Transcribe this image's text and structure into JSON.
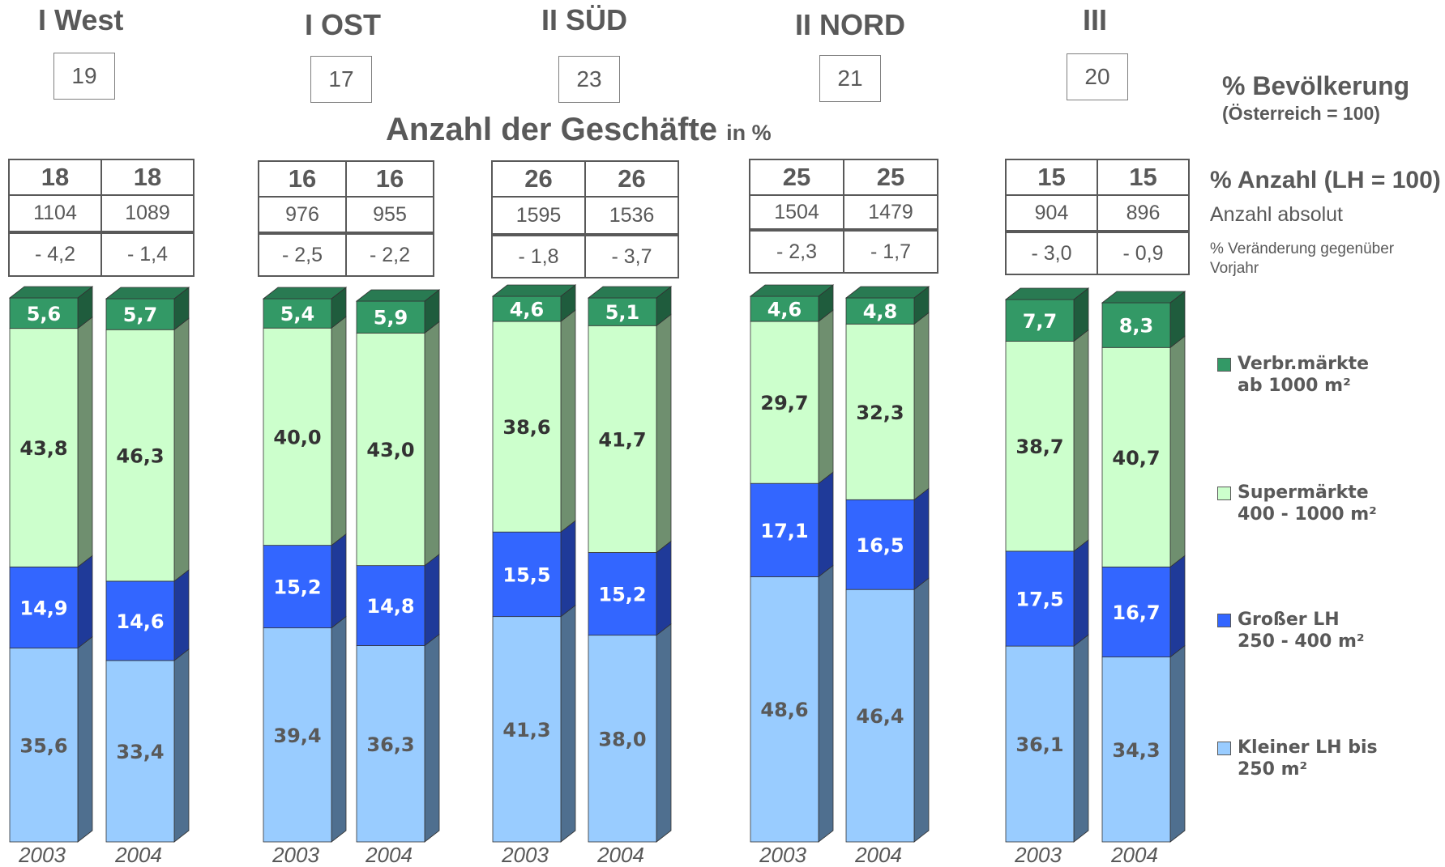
{
  "chart_data": {
    "type": "bar",
    "stacked": true,
    "title": "Anzahl der Geschäfte",
    "title_suffix": "in %",
    "population_label": "% Bevölkerung",
    "population_sublabel": "(Österreich = 100)",
    "row_labels": {
      "count_pct": "% Anzahl (LH = 100)",
      "count_abs": "Anzahl absolut",
      "change": "% Veränderung gegenüber Vorjahr"
    },
    "regions": [
      {
        "name": "I West",
        "population": "19",
        "years": [
          {
            "year": "2003",
            "count_pct": "18",
            "count_abs": "1104",
            "change": "- 4,2",
            "values": [
              35.6,
              14.9,
              43.8,
              5.6
            ],
            "labels": [
              "35,6",
              "14,9",
              "43,8",
              "5,6"
            ]
          },
          {
            "year": "2004",
            "count_pct": "18",
            "count_abs": "1089",
            "change": "- 1,4",
            "values": [
              33.4,
              14.6,
              46.3,
              5.7
            ],
            "labels": [
              "33,4",
              "14,6",
              "46,3",
              "5,7"
            ]
          }
        ]
      },
      {
        "name": "I OST",
        "population": "17",
        "years": [
          {
            "year": "2003",
            "count_pct": "16",
            "count_abs": "976",
            "change": "- 2,5",
            "values": [
              39.4,
              15.2,
              40.0,
              5.4
            ],
            "labels": [
              "39,4",
              "15,2",
              "40,0",
              "5,4"
            ]
          },
          {
            "year": "2004",
            "count_pct": "16",
            "count_abs": "955",
            "change": "- 2,2",
            "values": [
              36.3,
              14.8,
              43.0,
              5.9
            ],
            "labels": [
              "36,3",
              "14,8",
              "43,0",
              "5,9"
            ]
          }
        ]
      },
      {
        "name": "II SÜD",
        "population": "23",
        "years": [
          {
            "year": "2003",
            "count_pct": "26",
            "count_abs": "1595",
            "change": "- 1,8",
            "values": [
              41.3,
              15.5,
              38.6,
              4.6
            ],
            "labels": [
              "41,3",
              "15,5",
              "38,6",
              "4,6"
            ]
          },
          {
            "year": "2004",
            "count_pct": "26",
            "count_abs": "1536",
            "change": "- 3,7",
            "values": [
              38.0,
              15.2,
              41.7,
              5.1
            ],
            "labels": [
              "38,0",
              "15,2",
              "41,7",
              "5,1"
            ]
          }
        ]
      },
      {
        "name": "II NORD",
        "population": "21",
        "years": [
          {
            "year": "2003",
            "count_pct": "25",
            "count_abs": "1504",
            "change": "- 2,3",
            "values": [
              48.6,
              17.1,
              29.7,
              4.6
            ],
            "labels": [
              "48,6",
              "17,1",
              "29,7",
              "4,6"
            ]
          },
          {
            "year": "2004",
            "count_pct": "25",
            "count_abs": "1479",
            "change": "- 1,7",
            "values": [
              46.4,
              16.5,
              32.3,
              4.8
            ],
            "labels": [
              "46,4",
              "16,5",
              "32,3",
              "4,8"
            ]
          }
        ]
      },
      {
        "name": "III",
        "population": "20",
        "years": [
          {
            "year": "2003",
            "count_pct": "15",
            "count_abs": "904",
            "change": "- 3,0",
            "values": [
              36.1,
              17.5,
              38.7,
              7.7
            ],
            "labels": [
              "36,1",
              "17,5",
              "38,7",
              "7,7"
            ]
          },
          {
            "year": "2004",
            "count_pct": "15",
            "count_abs": "896",
            "change": "- 0,9",
            "values": [
              34.3,
              16.7,
              40.7,
              8.3
            ],
            "labels": [
              "34,3",
              "16,7",
              "40,7",
              "8,3"
            ]
          }
        ]
      }
    ],
    "series": [
      {
        "name": "Kleiner LH bis 250 m²",
        "line1": "Kleiner LH bis",
        "line2": "250 m²",
        "color": "#99ccff",
        "side": "#4f6f8f",
        "label_color": "#595959"
      },
      {
        "name": "Großer LH 250 - 400 m²",
        "line1": "Großer LH",
        "line2": "250 - 400 m²",
        "color": "#3366ff",
        "side": "#1f3a99",
        "label_color": "#ffffff"
      },
      {
        "name": "Supermärkte 400 - 1000 m²",
        "line1": "Supermärkte",
        "line2": "400 - 1000 m²",
        "color": "#ccffcc",
        "side": "#6f8f6f",
        "label_color": "#333333"
      },
      {
        "name": "Verbr.märkte ab 1000 m²",
        "line1": "Verbr.märkte",
        "line2": "ab 1000 m²",
        "color": "#339966",
        "side": "#1f5c3d",
        "label_color": "#ffffff"
      }
    ],
    "ylim": [
      0,
      100
    ],
    "legend_position": "right"
  }
}
